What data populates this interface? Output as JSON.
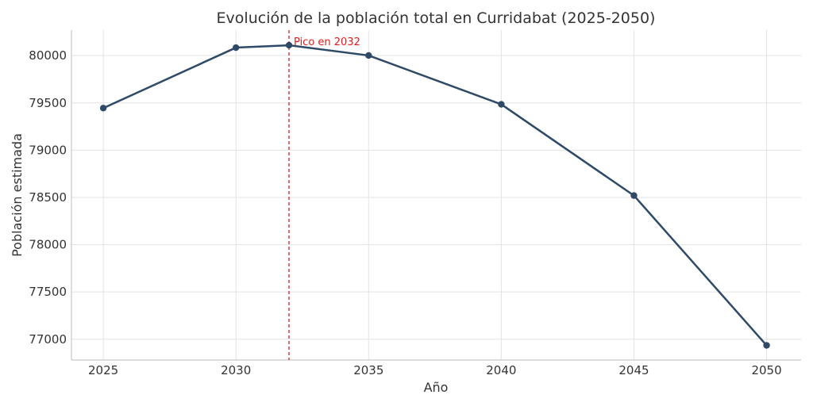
{
  "chart_data": {
    "type": "line",
    "title": "Evolución de la población total en Curridabat (2025-2050)",
    "xlabel": "Año",
    "ylabel": "Población estimada",
    "x": [
      2025,
      2030,
      2032,
      2035,
      2040,
      2045,
      2050
    ],
    "series": [
      {
        "values": [
          79445,
          80085,
          80110,
          80002,
          79485,
          78520,
          76935
        ]
      }
    ],
    "xticks": [
      2025,
      2030,
      2035,
      2040,
      2045,
      2050
    ],
    "yticks": [
      77000,
      77500,
      78000,
      78500,
      79000,
      79500,
      80000
    ],
    "xlim": [
      2023.8,
      2051.3
    ],
    "ylim": [
      76780,
      80270
    ],
    "grid": true,
    "annotations": [
      {
        "x": 2032,
        "text": "Pico en 2032",
        "style": "dashed-vertical-line",
        "color": "#e31a1c"
      }
    ],
    "colors": {
      "line": "#2e4a66",
      "annotation": "#e31a1c"
    }
  }
}
